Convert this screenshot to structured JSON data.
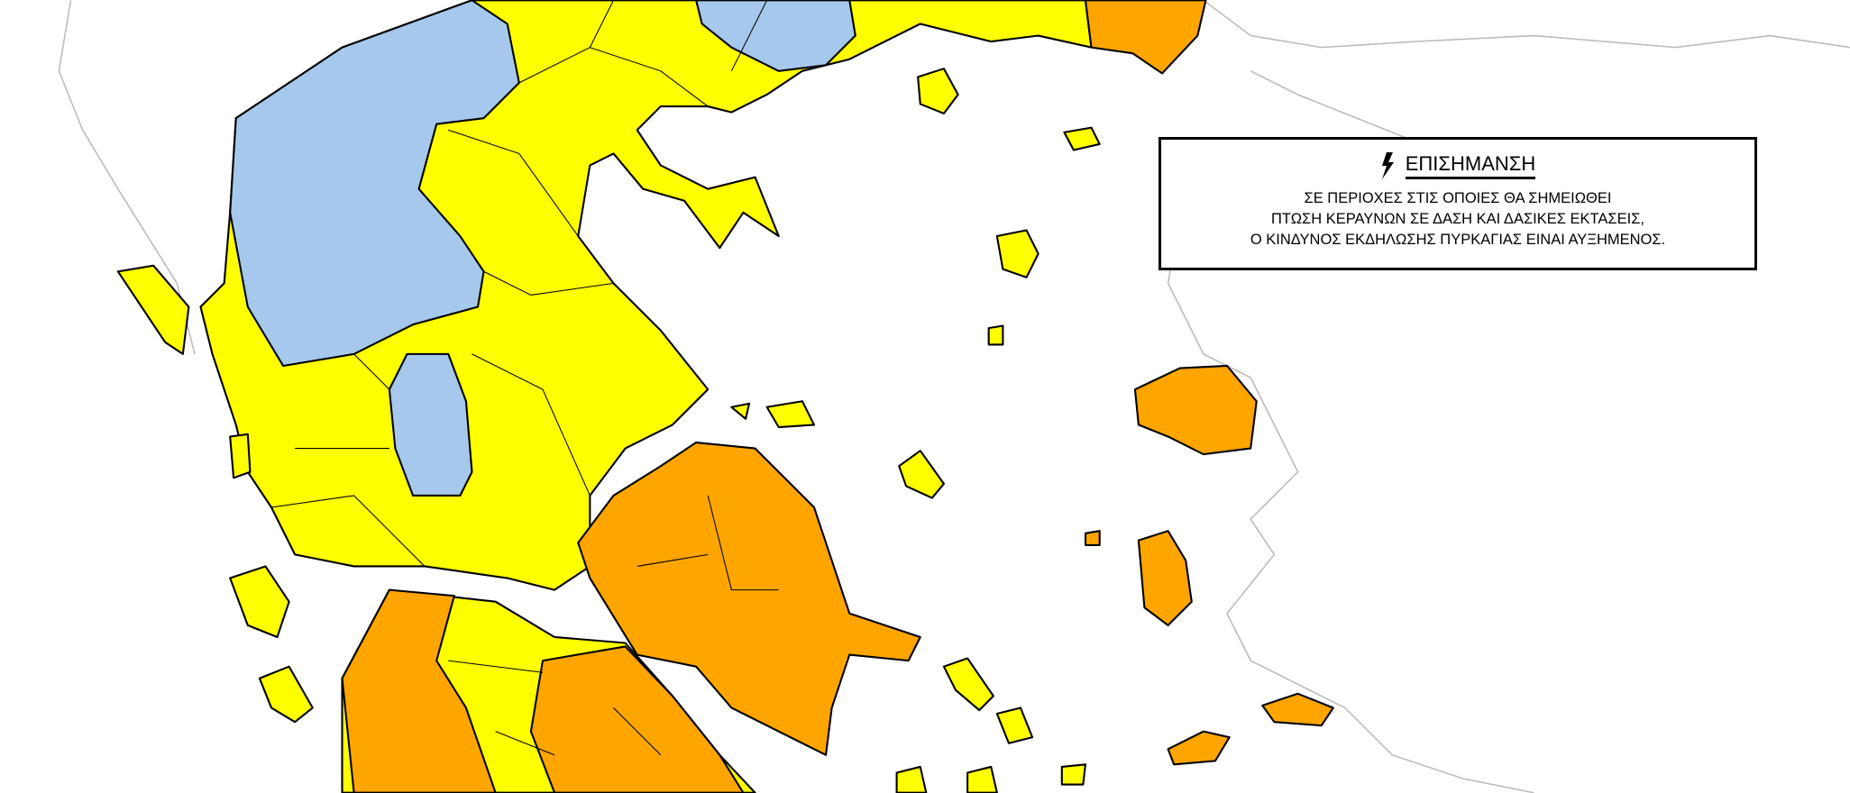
{
  "alert": {
    "icon": "lightning-icon",
    "title": "ΕΠΙΣΗΜΑΝΣΗ",
    "lines": [
      "ΣΕ ΠΕΡΙΟΧΕΣ ΣΤΙΣ ΟΠΟΙΕΣ ΘΑ ΣΗΜΕΙΩΘΕΙ",
      "ΠΤΩΣΗ ΚΕΡΑΥΝΩΝ ΣΕ ΔΑΣΗ ΚΑΙ ΔΑΣΙΚΕΣ ΕΚΤΑΣΕΙΣ,",
      "Ο ΚΙΝΔΥΝΟΣ ΕΚΔΗΛΩΣΗΣ ΠΥΡΚΑΓΙΑΣ ΕΙΝΑΙ ΑΥΞΗΜΕΝΟΣ."
    ]
  },
  "colors": {
    "risk_blue": "#a6c8ec",
    "risk_yellow": "#ffff00",
    "risk_orange": "#ffa500",
    "neighbor_outline": "#bbbbbb"
  }
}
